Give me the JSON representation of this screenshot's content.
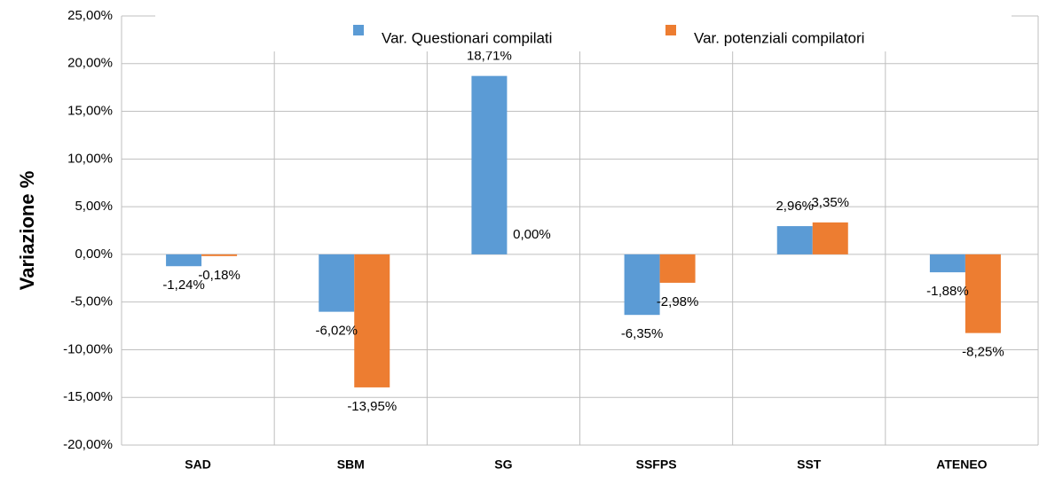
{
  "chart_data": {
    "type": "bar",
    "ylabel": "Variazione %",
    "categories": [
      "SAD",
      "SBM",
      "SG",
      "SSFPS",
      "SST",
      "ATENEO"
    ],
    "series": [
      {
        "name": "Var. Questionari compilati",
        "color": "#5b9bd5",
        "values": [
          -1.24,
          -6.02,
          18.71,
          -6.35,
          2.96,
          -1.88
        ],
        "value_labels": [
          "-1,24%",
          "-6,02%",
          "18,71%",
          "-6,35%",
          "2,96%",
          "-1,88%"
        ]
      },
      {
        "name": "Var. potenziali compilatori",
        "color": "#ed7d31",
        "values": [
          -0.18,
          -13.95,
          0.0,
          -2.98,
          3.35,
          -8.25
        ],
        "value_labels": [
          "-0,18%",
          "-13,95%",
          "0,00%",
          "-2,98%",
          "3,35%",
          "-8,25%"
        ]
      }
    ],
    "ylim": [
      -20,
      25
    ],
    "yticks": [
      {
        "value": -20,
        "label": "-20,00%"
      },
      {
        "value": -15,
        "label": "-15,00%"
      },
      {
        "value": -10,
        "label": "-10,00%"
      },
      {
        "value": -5,
        "label": "-5,00%"
      },
      {
        "value": 0,
        "label": "0,00%"
      },
      {
        "value": 5,
        "label": "5,00%"
      },
      {
        "value": 10,
        "label": "10,00%"
      },
      {
        "value": 15,
        "label": "15,00%"
      },
      {
        "value": 20,
        "label": "20,00%"
      },
      {
        "value": 25,
        "label": "25,00%"
      }
    ],
    "grid": true
  }
}
